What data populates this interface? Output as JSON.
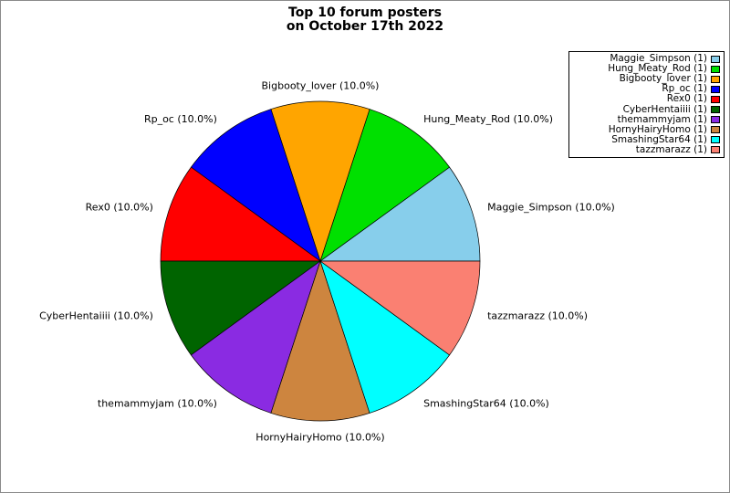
{
  "figure": {
    "background": "#FFFFFF",
    "border_color": "#8A8A8A"
  },
  "title": {
    "line1": "Top 10 forum posters",
    "line2": "on October 17th 2022"
  },
  "chart_data": {
    "type": "pie",
    "title": "Top 10 forum posters on October 17th 2022",
    "start_angle_deg": 0,
    "direction": "counterclockwise",
    "categories": [
      "Maggie_Simpson",
      "Hung_Meaty_Rod",
      "Bigbooty_lover",
      "Rp_oc",
      "Rex0",
      "CyberHentaiiii",
      "themammyjam",
      "HornyHairyHomo",
      "SmashingStar64",
      "tazzmarazz"
    ],
    "values": [
      1,
      1,
      1,
      1,
      1,
      1,
      1,
      1,
      1,
      1
    ],
    "percent_labels": [
      "10.0%",
      "10.0%",
      "10.0%",
      "10.0%",
      "10.0%",
      "10.0%",
      "10.0%",
      "10.0%",
      "10.0%",
      "10.0%"
    ],
    "colors": [
      "#87CEEB",
      "#00E000",
      "#FFA500",
      "#0000FF",
      "#FF0000",
      "#006400",
      "#8A2BE2",
      "#CD853F",
      "#00FFFF",
      "#FA8072"
    ],
    "slice_labels": [
      "Maggie_Simpson (10.0%)",
      "Hung_Meaty_Rod (10.0%)",
      "Bigbooty_lover (10.0%)",
      "Rp_oc (10.0%)",
      "Rex0 (10.0%)",
      "CyberHentaiiii (10.0%)",
      "themammyjam (10.0%)",
      "HornyHairyHomo (10.0%)",
      "SmashingStar64 (10.0%)",
      "tazzmarazz (10.0%)"
    ],
    "legend_labels": [
      "Maggie_Simpson (1)",
      "Hung_Meaty_Rod (1)",
      "Bigbooty_lover (1)",
      "Rp_oc (1)",
      "Rex0 (1)",
      "CyberHentaiiii (1)",
      "themammyjam (1)",
      "HornyHairyHomo (1)",
      "SmashingStar64 (1)",
      "tazzmarazz (1)"
    ],
    "legend_position": "upper right",
    "edge_color": "#000000"
  }
}
